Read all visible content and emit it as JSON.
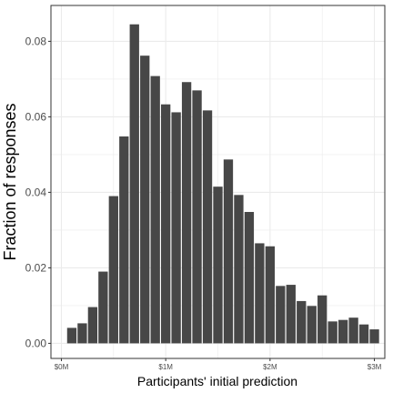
{
  "chart_data": {
    "type": "bar",
    "title": "",
    "xlabel": "Participants' initial prediction",
    "ylabel": "Fraction of responses",
    "xlim": [
      -0.1,
      3.1
    ],
    "ylim": [
      -0.004,
      0.0895
    ],
    "x_ticks": [
      {
        "value": 0,
        "label": "$0M"
      },
      {
        "value": 1,
        "label": "$1M"
      },
      {
        "value": 2,
        "label": "$2M"
      },
      {
        "value": 3,
        "label": "$3M"
      }
    ],
    "y_ticks": [
      {
        "value": 0.0,
        "label": "0.00"
      },
      {
        "value": 0.02,
        "label": "0.02"
      },
      {
        "value": 0.04,
        "label": "0.04"
      },
      {
        "value": 0.06,
        "label": "0.06"
      },
      {
        "value": 0.08,
        "label": "0.08"
      }
    ],
    "bin_width": 0.1,
    "bin_centers": [
      0.1,
      0.2,
      0.3,
      0.4,
      0.5,
      0.6,
      0.7,
      0.8,
      0.9,
      1.0,
      1.1,
      1.2,
      1.3,
      1.4,
      1.5,
      1.6,
      1.7,
      1.8,
      1.9,
      2.0,
      2.1,
      2.2,
      2.3,
      2.4,
      2.5,
      2.6,
      2.7,
      2.8,
      2.9,
      3.0
    ],
    "values": [
      0.0041,
      0.0053,
      0.0096,
      0.019,
      0.039,
      0.0548,
      0.0845,
      0.0762,
      0.0708,
      0.0633,
      0.0612,
      0.0692,
      0.067,
      0.0617,
      0.0415,
      0.0487,
      0.0393,
      0.0348,
      0.0265,
      0.0257,
      0.0152,
      0.0155,
      0.0112,
      0.0099,
      0.0127,
      0.0058,
      0.0062,
      0.0068,
      0.005,
      0.0037
    ],
    "bar_color": "#474747",
    "grid": true,
    "panel_border_color": "#333333",
    "grid_color": "#ebebeb",
    "legend": "none"
  }
}
